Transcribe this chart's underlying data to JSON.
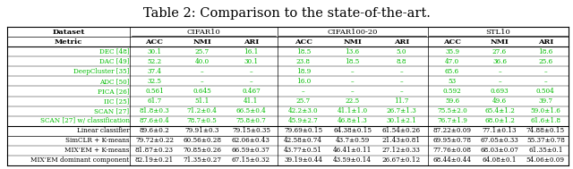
{
  "title": "Table 2: Comparison to the state-of-the-art.",
  "rows": [
    [
      "DEC [48]",
      "30.1",
      "25.7",
      "16.1",
      "18.5",
      "13.6",
      "5.0",
      "35.9",
      "27.6",
      "18.6"
    ],
    [
      "DAC [49]",
      "52.2",
      "40.0",
      "30.1",
      "23.8",
      "18.5",
      "8.8",
      "47.0",
      "36.6",
      "25.6"
    ],
    [
      "DeepCluster [35]",
      "37.4",
      "–",
      "–",
      "18.9",
      "–",
      "–",
      "65.6",
      "–",
      "–"
    ],
    [
      "ADC [50]",
      "32.5",
      "–",
      "–",
      "16.0",
      "–",
      "–",
      "53",
      "–",
      "–"
    ],
    [
      "PICA [26]",
      "0.561",
      "0.645",
      "0.467",
      "–",
      "–",
      "–",
      "0.592",
      "0.693",
      "0.504"
    ],
    [
      "IIC [25]",
      "61.7",
      "51.1",
      "41.1",
      "25.7",
      "22.5",
      "11.7",
      "59.6",
      "49.6",
      "39.7"
    ],
    [
      "SCAN [27]",
      "81.8±0.3",
      "71.2±0.4",
      "66.5±0.4",
      "42.2±3.0",
      "41.1±1.0",
      "26.7±1.3",
      "75.5±2.0",
      "65.4±1.2",
      "59.0±1.6"
    ],
    [
      "SCAN [27] w/ classification",
      "87.6±0.4",
      "78.7±0.5",
      "75.8±0.7",
      "45.9±2.7",
      "46.8±1.3",
      "30.1±2.1",
      "76.7±1.9",
      "68.0±1.2",
      "61.6±1.8"
    ],
    [
      "Linear classifier",
      "89.6±0.2",
      "79.91±0.3",
      "79.15±0.35",
      "79.69±0.15",
      "64.38±0.15",
      "61.54±0.26",
      "87.22±0.09",
      "77.1±0.13",
      "74.88±0.15"
    ],
    [
      "SimCLR + K-means",
      "79.72±0.22",
      "60.56±0.28",
      "62.06±0.43",
      "42.58±0.74",
      "43.7±0.59",
      "21.43±0.81",
      "69.95±0.78",
      "67.05±0.33",
      "55.37±0.78"
    ],
    [
      "MIX’EM + K-means",
      "81.87±0.23",
      "70.85±0.26",
      "66.59±0.37",
      "43.77±0.51",
      "46.41±0.11",
      "27.12±0.33",
      "77.76±0.08",
      "68.03±0.07",
      "61.35±0.1"
    ],
    [
      "MIX’EM dominant component",
      "82.19±0.21",
      "71.35±0.27",
      "67.15±0.32",
      "39.19±0.44",
      "43.59±0.14",
      "26.67±0.12",
      "68.44±0.44",
      "64.08±0.1",
      "54.06±0.09"
    ]
  ],
  "green_rows": [
    0,
    1,
    2,
    3,
    4,
    5,
    6,
    7
  ],
  "background_color": "#ffffff",
  "title_fontsize": 10.5,
  "cell_fontsize": 5.2,
  "header_fontsize": 6.0
}
